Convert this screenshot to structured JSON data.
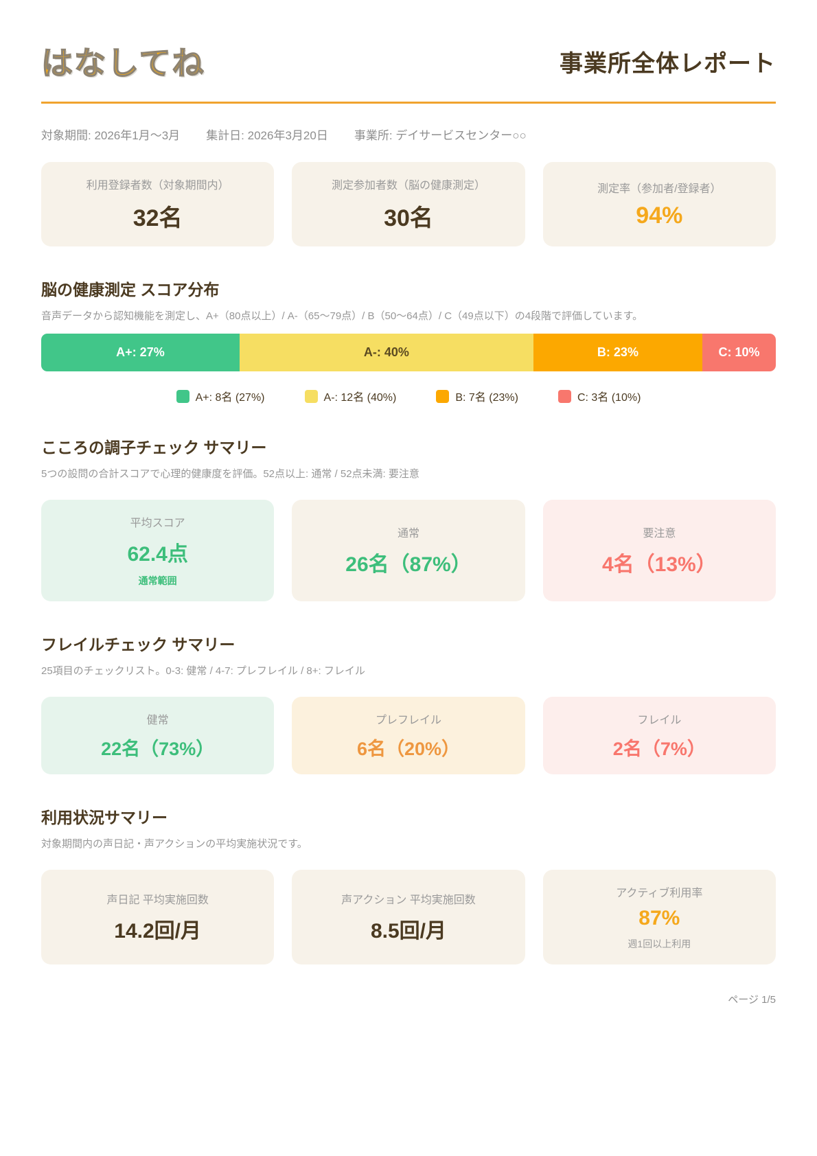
{
  "header": {
    "logo": "はなしてね",
    "title": "事業所全体レポート"
  },
  "meta": {
    "period": "対象期間: 2026年1月〜3月",
    "aggregation_date": "集計日: 2026年3月20日",
    "office": "事業所: デイサービスセンター○○"
  },
  "overview": {
    "cards": [
      {
        "label": "利用登録者数（対象期間内）",
        "value": "32名"
      },
      {
        "label": "測定参加者数（脳の健康測定）",
        "value": "30名"
      },
      {
        "label": "測定率（参加者/登録者）",
        "value": "94%"
      }
    ]
  },
  "brain": {
    "title": "脳の健康測定 スコア分布",
    "subtitle": "音声データから認知機能を測定し、A+（80点以上）/ A-（65〜79点）/ B（50〜64点）/ C（49点以下）の4段階で評価しています。",
    "chart_data": {
      "type": "bar",
      "variant": "horizontal-stacked-100pct",
      "title": "脳の健康測定 スコア分布",
      "categories": [
        "A+",
        "A-",
        "B",
        "C"
      ],
      "values_count": [
        8,
        12,
        7,
        3
      ],
      "values_percent": [
        27,
        40,
        23,
        10
      ],
      "total_participants": 30,
      "segments": [
        {
          "grade": "A+",
          "count": 8,
          "percent": 27,
          "bar_label": "A+: 27%",
          "legend_label": "A+: 8名 (27%)",
          "color": "#41c689",
          "text_color": "#ffffff"
        },
        {
          "grade": "A-",
          "count": 12,
          "percent": 40,
          "bar_label": "A-: 40%",
          "legend_label": "A-: 12名 (40%)",
          "color": "#f6de62",
          "text_color": "#5b4a21"
        },
        {
          "grade": "B",
          "count": 7,
          "percent": 23,
          "bar_label": "B: 23%",
          "legend_label": "B: 7名 (23%)",
          "color": "#fca800",
          "text_color": "#ffffff"
        },
        {
          "grade": "C",
          "count": 3,
          "percent": 10,
          "bar_label": "C: 10%",
          "legend_label": "C: 3名 (10%)",
          "color": "#f8776d",
          "text_color": "#ffffff"
        }
      ],
      "legend_position": "bottom-center",
      "grid": false
    }
  },
  "mind": {
    "title": "こころの調子チェック サマリー",
    "subtitle": "5つの設問の合計スコアで心理的健康度を評価。52点以上: 通常 / 52点未満: 要注意",
    "cards": [
      {
        "label": "平均スコア",
        "value": "62.4点",
        "note": "通常範囲"
      },
      {
        "label": "通常",
        "value": "26名（87%）"
      },
      {
        "label": "要注意",
        "value": "4名（13%）"
      }
    ]
  },
  "frailty": {
    "title": "フレイルチェック サマリー",
    "subtitle": "25項目のチェックリスト。0-3: 健常 / 4-7: プレフレイル / 8+: フレイル",
    "cards": [
      {
        "label": "健常",
        "value": "22名（73%）"
      },
      {
        "label": "プレフレイル",
        "value": "6名（20%）"
      },
      {
        "label": "フレイル",
        "value": "2名（7%）"
      }
    ]
  },
  "usage": {
    "title": "利用状況サマリー",
    "subtitle": "対象期間内の声日記・声アクションの平均実施状況です。",
    "cards": [
      {
        "label": "声日記 平均実施回数",
        "value": "14.2回/月"
      },
      {
        "label": "声アクション 平均実施回数",
        "value": "8.5回/月"
      },
      {
        "label": "アクティブ利用率",
        "value": "87%",
        "note": "週1回以上利用"
      }
    ]
  },
  "footer": {
    "page_indicator": "ページ 1/5"
  },
  "colors": {
    "accent_orange": "#f5a81c",
    "divider_orange": "#f0a32e",
    "dark_brown_text": "#4b3a21",
    "gray_label": "#9a9a9a",
    "card_cream_bg": "#f7f2e9",
    "mint_bg": "#e6f4ec",
    "pink_bg": "#fdeeec",
    "peach_bg": "#fcf1dd",
    "green_value": "#3dbe7b",
    "red_value": "#f8766d",
    "orange_value": "#ee9740",
    "bar_green": "#41c689",
    "bar_yellow": "#f6de62",
    "bar_orange": "#fca800",
    "bar_coral": "#f8776d"
  }
}
